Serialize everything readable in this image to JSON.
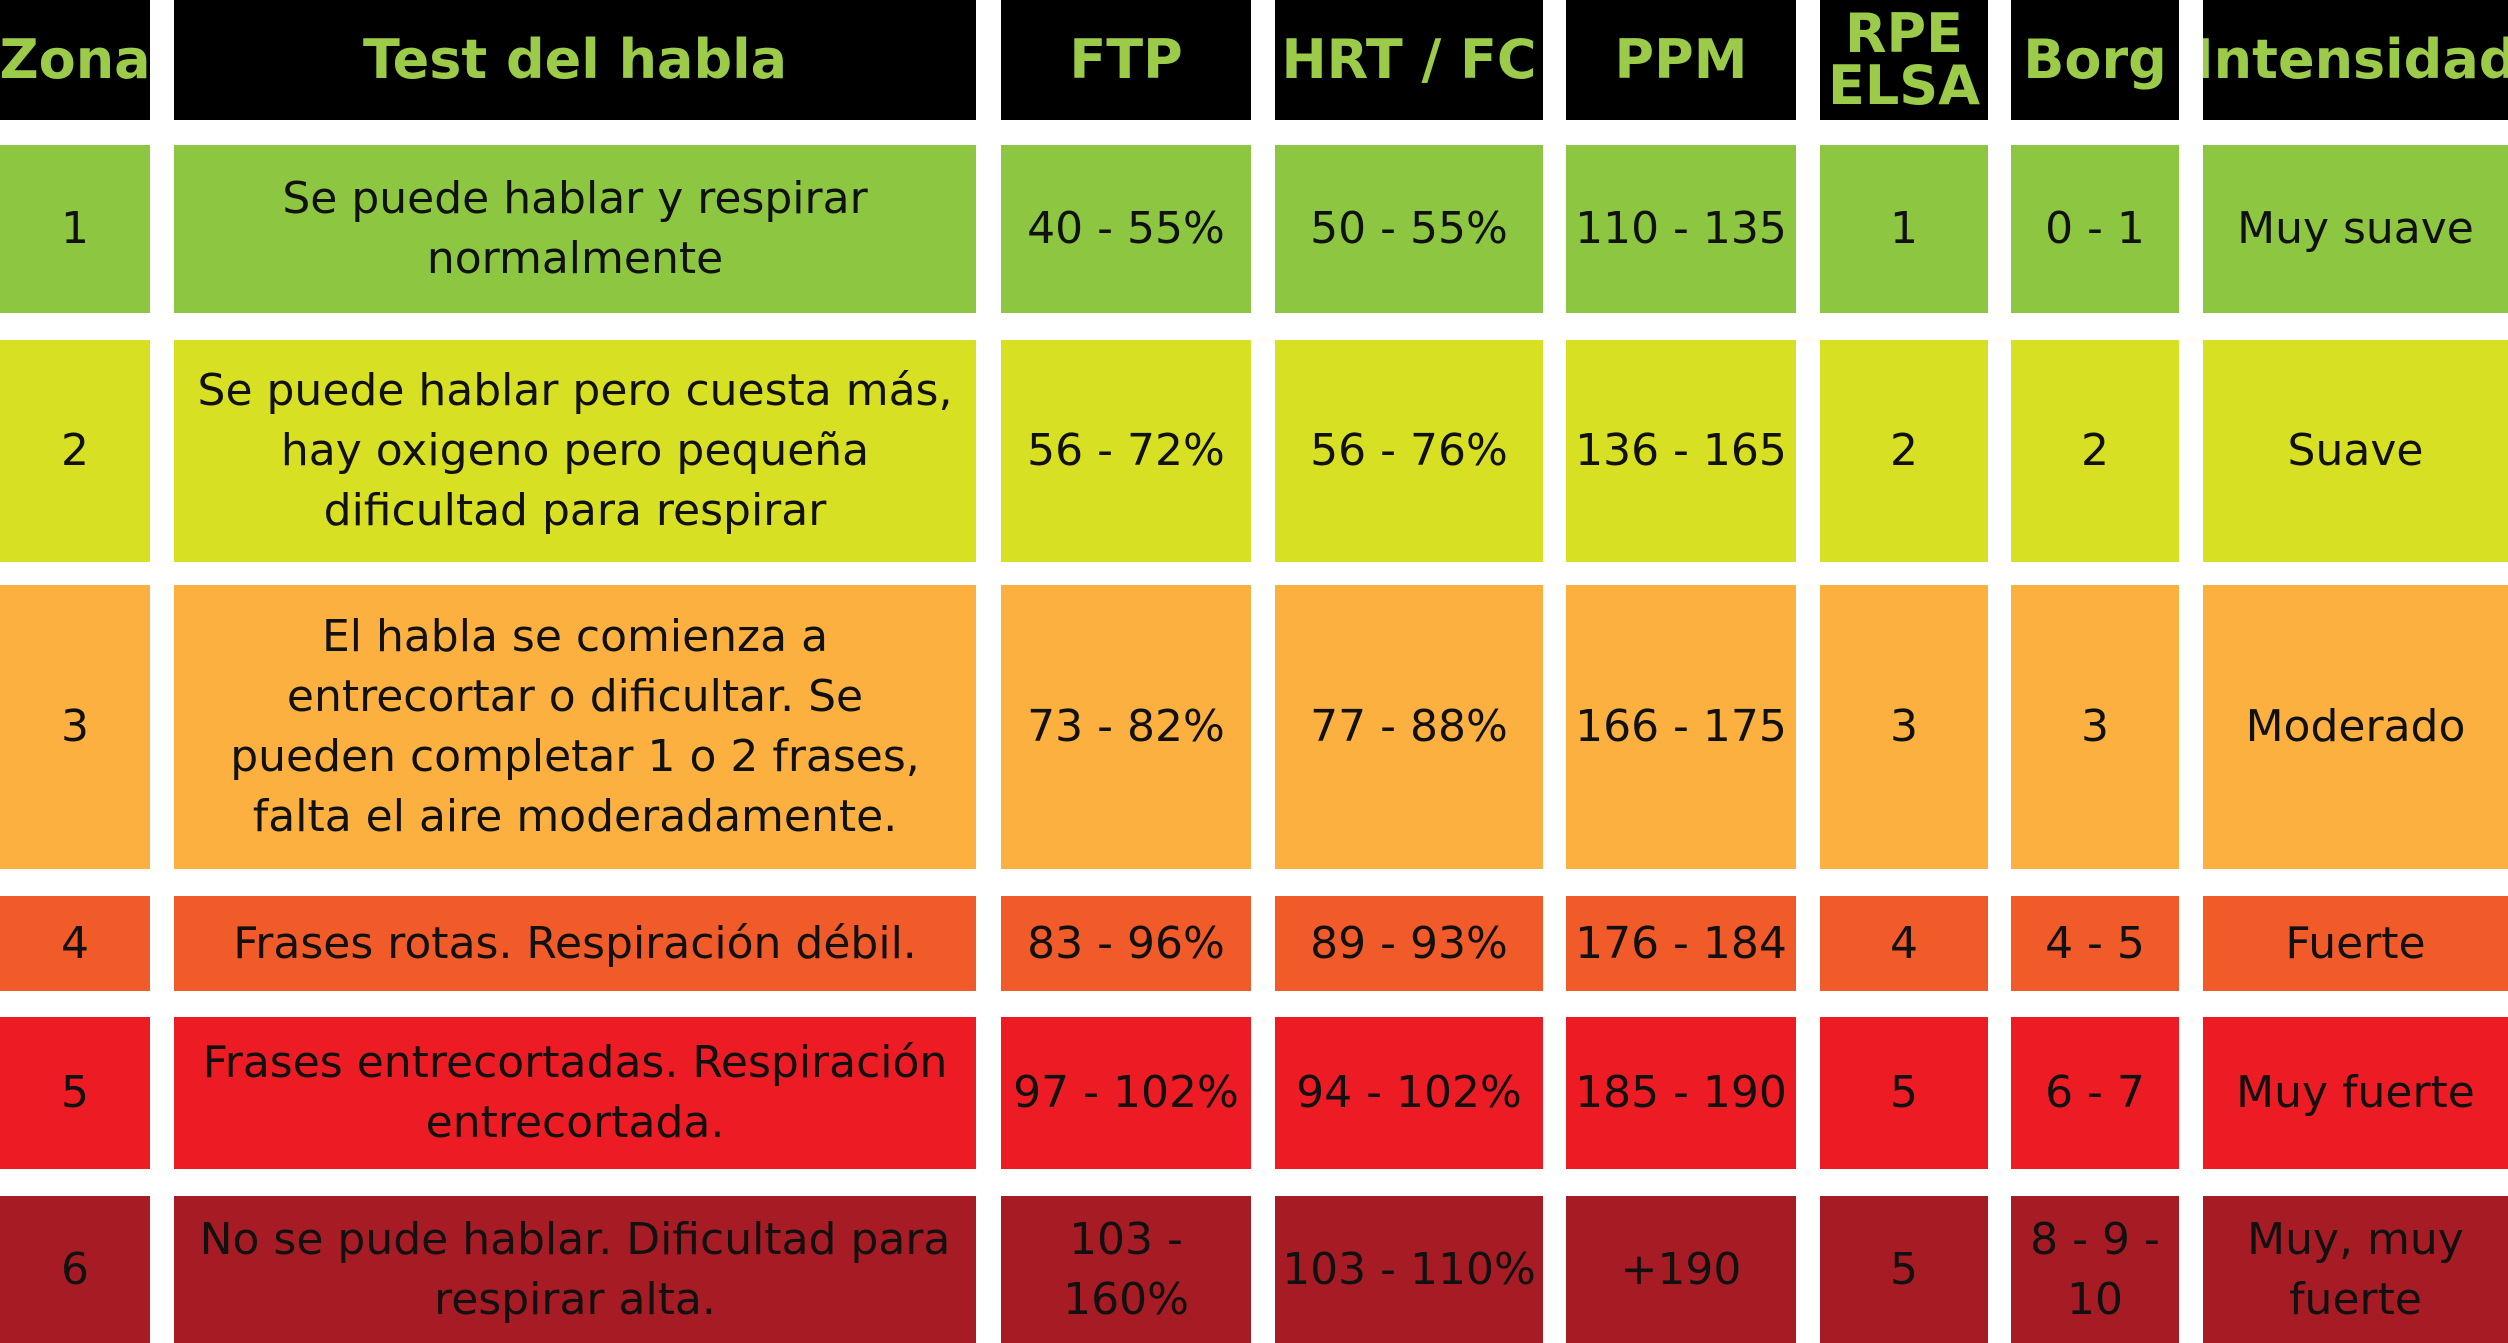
{
  "header": [
    "Zona",
    "Test del habla",
    "FTP",
    "HRT / FC",
    "PPM",
    "RPE\nELSA",
    "Borg",
    "Intensidad"
  ],
  "rows": [
    {
      "color": "#8dc641",
      "cells": [
        "1",
        "Se puede hablar y respirar\nnormalmente",
        "40 - 55%",
        "50 - 55%",
        "110 - 135",
        "1",
        "0 - 1",
        "Muy suave"
      ]
    },
    {
      "color": "#d7e022",
      "cells": [
        "2",
        "Se puede hablar pero cuesta más,\nhay oxigeno pero pequeña\ndificultad para respirar",
        "56 - 72%",
        "56 - 76%",
        "136 - 165",
        "2",
        "2",
        "Suave"
      ]
    },
    {
      "color": "#fbb040",
      "cells": [
        "3",
        "El habla se comienza a\nentrecortar o dificultar. Se\npueden completar 1 o 2 frases,\nfalta el aire moderadamente.",
        "73 - 82%",
        "77 - 88%",
        "166 - 175",
        "3",
        "3",
        "Moderado"
      ]
    },
    {
      "color": "#f15a29",
      "cells": [
        "4",
        "Frases rotas. Respiración débil.",
        "83 - 96%",
        "89 - 93%",
        "176 - 184",
        "4",
        "4 - 5",
        "Fuerte"
      ]
    },
    {
      "color": "#ed1c24",
      "cells": [
        "5",
        "Frases entrecortadas. Respiración\nentrecortada.",
        "97 - 102%",
        "94 - 102%",
        "185 - 190",
        "5",
        "6 - 7",
        "Muy fuerte"
      ]
    },
    {
      "color": "#a71c24",
      "cells": [
        "6",
        "No se pude hablar. Dificultad para\nrespirar alta.",
        "103 - 160%",
        "103 - 110%",
        "+190",
        "5",
        "8 - 9 -\n10",
        "Muy, muy\nfuerte"
      ]
    }
  ]
}
